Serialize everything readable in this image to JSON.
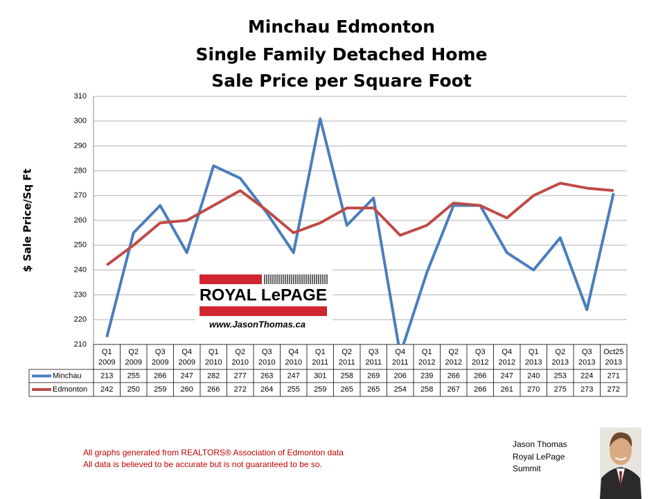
{
  "chart_data": {
    "type": "line",
    "title": [
      "Minchau Edmonton",
      "Single Family Detached Home",
      "Sale Price per Square Foot"
    ],
    "y_label": "$ Sale Price/Sq Ft",
    "categories": [
      [
        "Q1",
        "2009"
      ],
      [
        "Q2",
        "2009"
      ],
      [
        "Q3",
        "2009"
      ],
      [
        "Q4",
        "2009"
      ],
      [
        "Q1",
        "2010"
      ],
      [
        "Q2",
        "2010"
      ],
      [
        "Q3",
        "2010"
      ],
      [
        "Q4",
        "2010"
      ],
      [
        "Q1",
        "2011"
      ],
      [
        "Q2",
        "2011"
      ],
      [
        "Q3",
        "2011"
      ],
      [
        "Q4",
        "2011"
      ],
      [
        "Q1",
        "2012"
      ],
      [
        "Q2",
        "2012"
      ],
      [
        "Q3",
        "2012"
      ],
      [
        "Q4",
        "2012"
      ],
      [
        "Q1",
        "2013"
      ],
      [
        "Q2",
        "2013"
      ],
      [
        "Q3",
        "2013"
      ],
      [
        "Oct25",
        "2013"
      ]
    ],
    "series": [
      {
        "name": "Minchau",
        "color": "#4a7ebb",
        "values": [
          213,
          255,
          266,
          247,
          282,
          277,
          263,
          247,
          301,
          258,
          269,
          206,
          239,
          266,
          266,
          247,
          240,
          253,
          224,
          271
        ]
      },
      {
        "name": "Edmonton",
        "color": "#be4b48",
        "values": [
          242,
          250,
          259,
          260,
          266,
          272,
          264,
          255,
          259,
          265,
          265,
          254,
          258,
          267,
          266,
          261,
          270,
          275,
          273,
          272
        ]
      }
    ],
    "ylim": [
      210,
      310
    ],
    "yticks": [
      210,
      220,
      230,
      240,
      250,
      260,
      270,
      280,
      290,
      300,
      310
    ],
    "grid": true,
    "logo": {
      "brand": "ROYAL LePAGE",
      "url": "www.JasonThomas.ca"
    },
    "notes": [
      "All graphs generated from REALTORS® Association of Edmonton data",
      "All data is believed to be accurate but is not guaranteed to be so."
    ],
    "signature": [
      "Jason Thomas",
      "Royal LePage",
      "Summit"
    ]
  }
}
